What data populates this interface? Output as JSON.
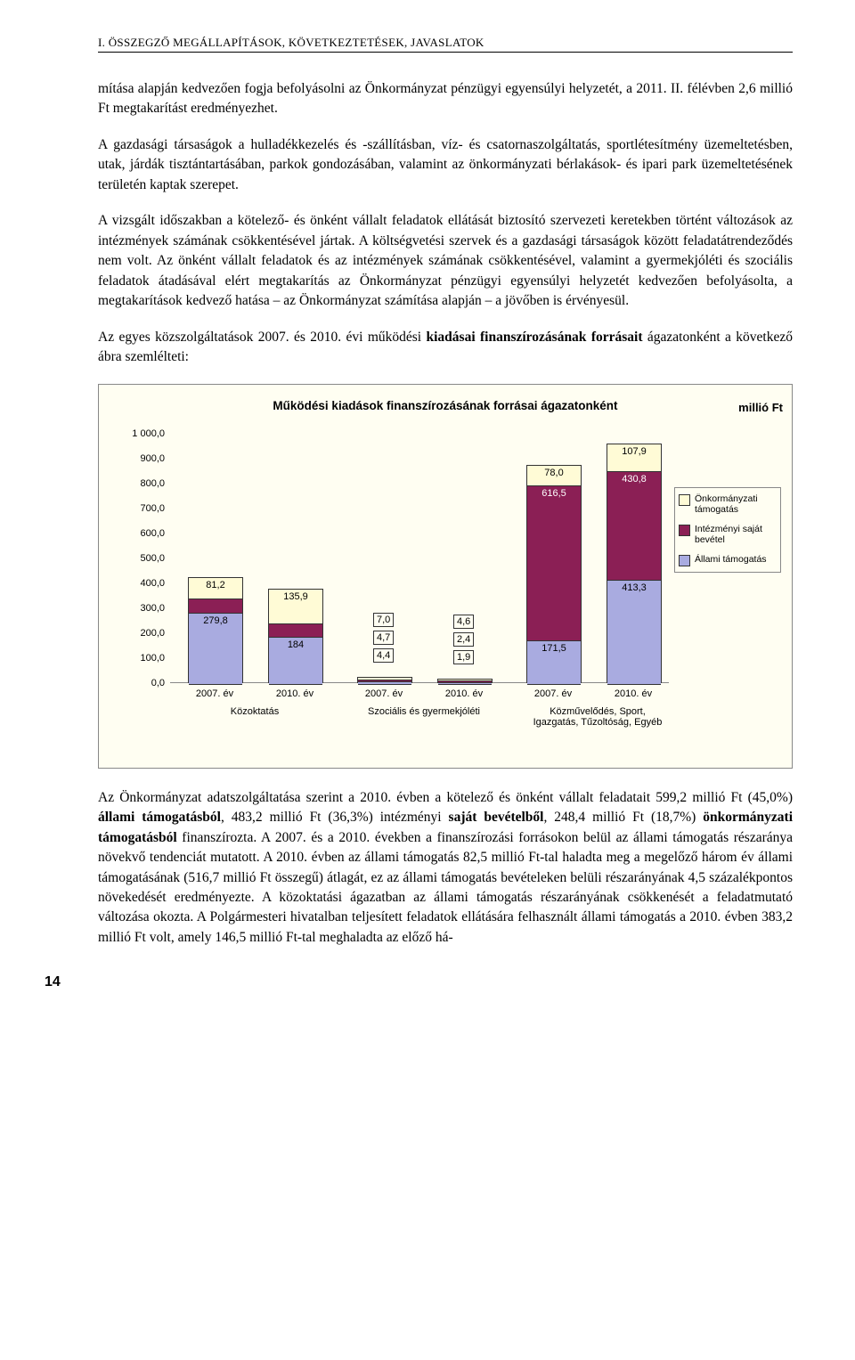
{
  "header": "I. ÖSSZEGZŐ MEGÁLLAPÍTÁSOK, KÖVETKEZTETÉSEK, JAVASLATOK",
  "para1": "mítása alapján kedvezően fogja befolyásolni az Önkormányzat pénzügyi egyensúlyi helyzetét, a 2011. II. félévben 2,6 millió Ft megtakarítást eredmé­nyezhet.",
  "para2": "A gazdasági társaságok a hulladékkezelés és -szállításban, víz- és csatornaszol­gáltatás, sportlétesítmény üzemeltetésben, utak, járdák tisztántartásában, par­kok gondozásában, valamint az önkormányzati bérlakások- és ipari park üze­meltetésének területén kaptak szerepet.",
  "para3": "A vizsgált időszakban a kötelező- és önként vállalt feladatok ellátását biztosító szervezeti keretekben történt változások az intézmények számának csökkenté­sével jártak. A költségvetési szervek és a gazdasági társaságok között feladatát­rendeződés nem volt. Az önként vállalt feladatok és az intézmények számának csökkentésével, valamint a gyermekjóléti és szociális feladatok átadásával elért megtakarítás az Önkormányzat pénzügyi egyensúlyi helyzetét kedvezően befo­lyásolta, a megtakarítások kedvező hatása – az Önkormányzat számítása alap­ján – a jövőben is érvényesül.",
  "para4_pre": "Az egyes közszolgáltatások 2007. és 2010. évi működési ",
  "para4_bold": "kiadásai finanszíro­zásának forrásait",
  "para4_post": " ágazatonként a következő ábra szemlélteti:",
  "para5_1": "Az Önkormányzat adatszolgáltatása szerint a 2010. évben a kötelező és önként vállalt feladatait 599,2 millió Ft (45,0%) ",
  "para5_b1": "állami támogatásból",
  "para5_2": ", 483,2 mil­lió Ft (36,3%) intézményi ",
  "para5_b2": "saját bevételből",
  "para5_3": ", 248,4 millió Ft (18,7%) ",
  "para5_b3": "önkor­mányzati támogatásból",
  "para5_4": " finanszírozta. A 2007. és a 2010. években a finan­szírozási forrásokon belül az állami támogatás részaránya növekvő tendenciát mutatott. A 2010. évben az állami támogatás 82,5 millió Ft-tal haladta meg a megelőző három év állami támogatásának (516,7 millió Ft összegű) átlagát, ez az állami támogatás bevételeken belüli részarányának 4,5 százalékpontos nö­vekedését eredményezte. A közoktatási ágazatban az állami támogatás rész­arányának csökkenését a feladatmutató változása okozta. A Polgármesteri hi­vatalban teljesített feladatok ellátására felhasznált állami támogatás a 2010. évben 383,2 millió Ft volt, amely 146,5 millió Ft-tal meghaladta az előző há-",
  "page_num": "14",
  "chart": {
    "title": "Működési kiadások finanszírozásának forrásai ágazatonként",
    "unit": "millió Ft",
    "y_max": 1000,
    "y_ticks": [
      "0,0",
      "100,0",
      "200,0",
      "300,0",
      "400,0",
      "500,0",
      "600,0",
      "700,0",
      "800,0",
      "900,0",
      "1 000,0"
    ],
    "x_year_labels": [
      "2007. év",
      "2010. év",
      "2007. év",
      "2010. év",
      "2007. év",
      "2010. év"
    ],
    "x_groups": [
      "Közoktatás",
      "Szociális és gyermekjóléti",
      "Közművelődés, Sport, Igazgatás, Tűzoltóság, Egyéb"
    ],
    "colors": {
      "ony": "#fffbd6",
      "int": "#8b1f55",
      "all": "#a9abe0",
      "bg": "#fffef2"
    },
    "legend": [
      {
        "label": "Önkormányzati támogatás",
        "key": "ony"
      },
      {
        "label": "Intézményi saját bevétel",
        "key": "int"
      },
      {
        "label": "Állami támogatás",
        "key": "all"
      }
    ],
    "bars": [
      {
        "vals": {
          "all": 279.8,
          "int": 55.2,
          "ony": 81.2
        },
        "labels": {
          "all": "279,8",
          "int": "55,2",
          "ony": "81,2"
        }
      },
      {
        "vals": {
          "all": 184,
          "int": 50,
          "ony": 135.9
        },
        "labels": {
          "all": "184",
          "int": "50",
          "ony": "135,9"
        }
      },
      {
        "vals": {
          "all": 4.4,
          "int": 4.7,
          "ony": 7.0
        },
        "labels": {
          "all": "4,4",
          "int": "4,7",
          "ony": "7,0"
        }
      },
      {
        "vals": {
          "all": 1.9,
          "int": 2.4,
          "ony": 4.6
        },
        "labels": {
          "all": "1,9",
          "int": "2,4",
          "ony": "4,6"
        }
      },
      {
        "vals": {
          "all": 171.5,
          "int": 616.5,
          "ony": 78.0
        },
        "labels": {
          "all": "171,5",
          "int": "616,5",
          "ony": "78,0"
        }
      },
      {
        "vals": {
          "all": 413.3,
          "int": 430.8,
          "ony": 107.9
        },
        "labels": {
          "all": "413,3",
          "int": "430,8",
          "ony": "107,9"
        }
      }
    ]
  }
}
